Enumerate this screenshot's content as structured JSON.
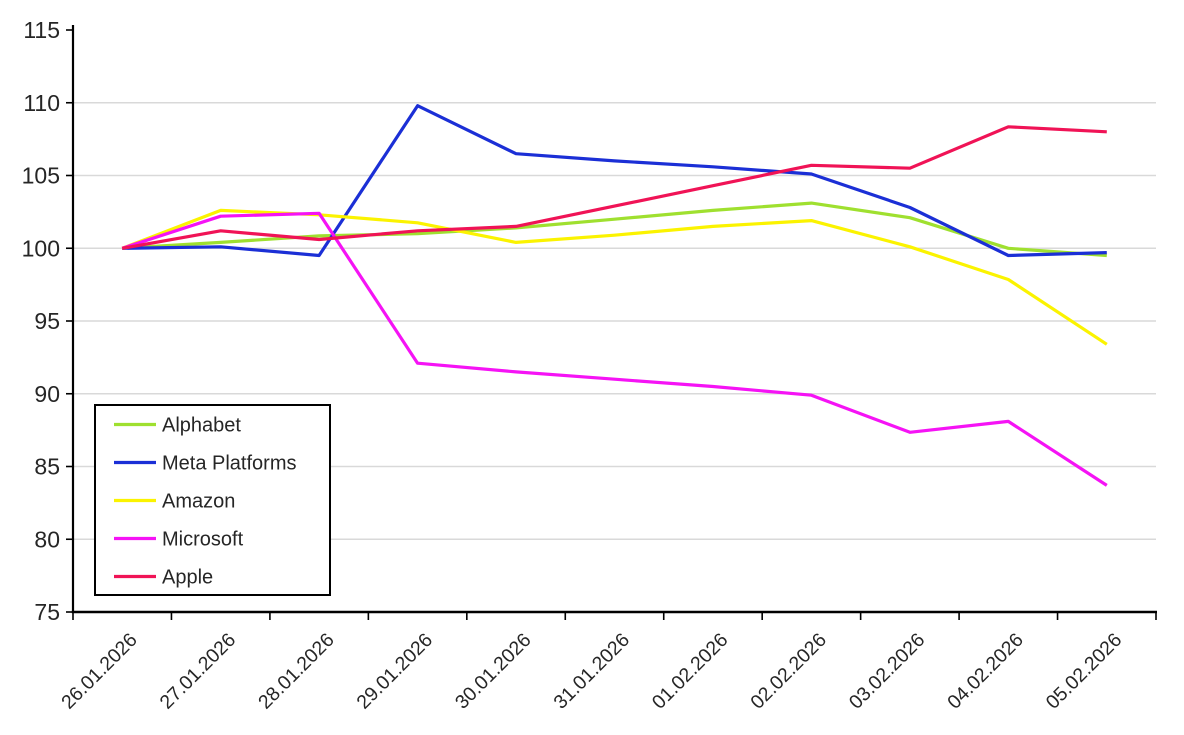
{
  "chart_data": {
    "type": "line",
    "title": "",
    "x_categories": [
      "26.01.2026",
      "27.01.2026",
      "28.01.2026",
      "29.01.2026",
      "30.01.2026",
      "31.01.2026",
      "01.02.2026",
      "02.02.2026",
      "03.02.2026",
      "04.02.2026",
      "05.02.2026"
    ],
    "series": [
      {
        "name": "Alphabet",
        "color": "#9FE02F",
        "values": [
          100,
          100.4,
          100.85,
          101.0,
          101.4,
          102.0,
          102.6,
          103.1,
          102.1,
          100.0,
          99.5
        ]
      },
      {
        "name": "Meta Platforms",
        "color": "#1B2FD6",
        "values": [
          100,
          100.1,
          99.5,
          109.8,
          106.5,
          106.0,
          105.6,
          105.1,
          102.8,
          99.5,
          99.7
        ]
      },
      {
        "name": "Amazon",
        "color": "#FBF300",
        "values": [
          100,
          102.6,
          102.3,
          101.75,
          100.4,
          100.9,
          101.5,
          101.9,
          100.1,
          97.85,
          93.4
        ]
      },
      {
        "name": "Microsoft",
        "color": "#F513F5",
        "values": [
          100,
          102.2,
          102.4,
          92.1,
          91.5,
          91.0,
          90.5,
          89.9,
          87.35,
          88.1,
          83.7
        ]
      },
      {
        "name": "Apple",
        "color": "#F01356",
        "values": [
          100,
          101.2,
          100.6,
          101.2,
          101.5,
          102.9,
          104.3,
          105.7,
          105.5,
          108.35,
          108.0
        ]
      }
    ],
    "ylim": [
      75,
      115
    ],
    "y_step": 5,
    "y_ticks": [
      75,
      80,
      85,
      90,
      95,
      100,
      105,
      110,
      115
    ],
    "grid": "horizontal",
    "legend_position": "inside-bottom-left",
    "grid_color": "#D9D9D9",
    "axis_color": "#000000",
    "label_color": "#262626"
  }
}
